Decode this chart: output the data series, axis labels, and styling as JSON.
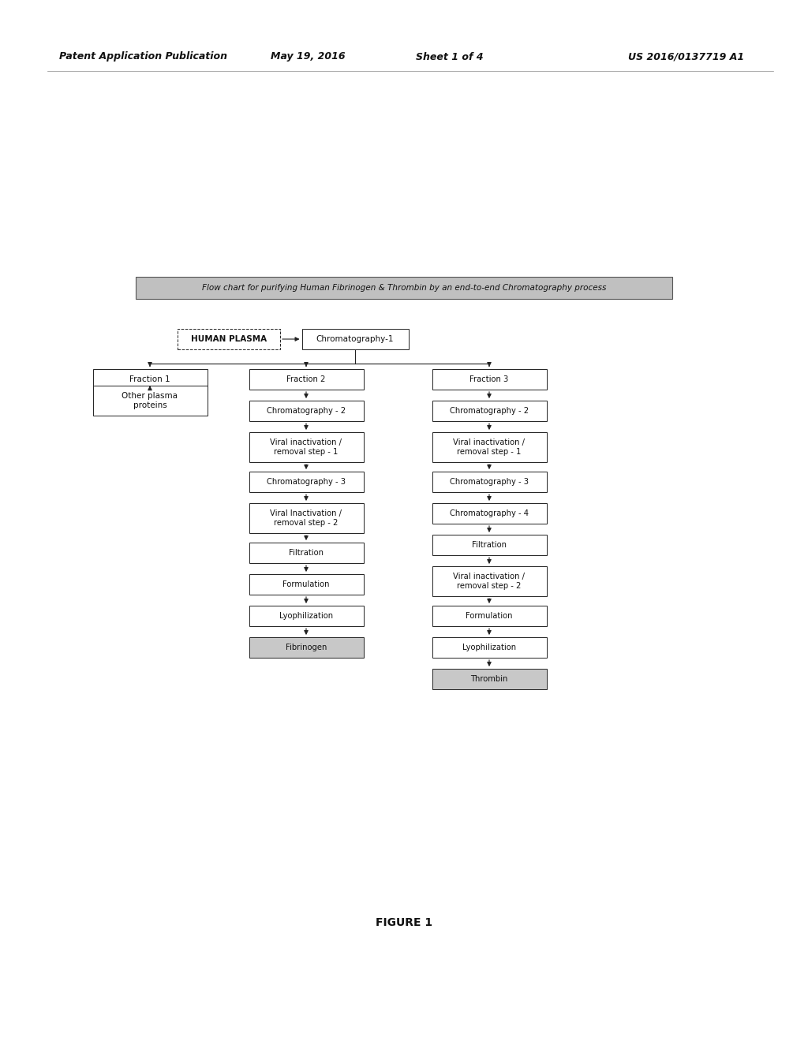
{
  "title_header": "Flow chart for purifying Human Fibrinogen & Thrombin by an end-to-end Chromatography process",
  "header_line1": "Patent Application Publication",
  "header_date": "May 19, 2016",
  "header_sheet": "Sheet 1 of 4",
  "header_patent": "US 2016/0137719 A1",
  "figure_label": "FIGURE 1",
  "background_color": "#ffffff",
  "box_fill_normal": "#ffffff",
  "box_fill_shaded": "#c8c8c8",
  "box_border_color": "#222222",
  "title_box_fill": "#c0c0c0",
  "text_color": "#111111",
  "arrow_color": "#222222"
}
